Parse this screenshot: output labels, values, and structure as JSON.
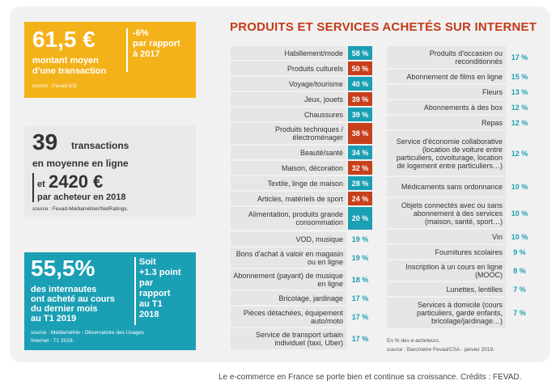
{
  "panel1": {
    "big": "61,5 €",
    "line1": "montant moyen",
    "line2": "d'une transaction",
    "side1": "-6%",
    "side2": "par rapport",
    "side3": "à 2017",
    "source": "source : Fevad iCE"
  },
  "panel2": {
    "big": "39",
    "line1": "transactions",
    "line2": "en moyenne en ligne",
    "et": "et",
    "big2": "2420 €",
    "line3": "par acheteur en 2018",
    "source": "source : Fevad-Médiamétrie//NetRatings."
  },
  "panel3": {
    "big": "55,5%",
    "line1": "des internautes",
    "line2": "ont acheté au cours",
    "line3": "du dernier mois",
    "line4": "au T1 2019",
    "side1": "Soit",
    "side2": "+1.3 point",
    "side3": "par",
    "side4": "rapport",
    "side5": "au T1",
    "side6": "2018",
    "source1": "source : Médiamétrie - Observatoire des Usages",
    "source2": "Internet - T1 2019."
  },
  "chart_data": {
    "type": "bar",
    "title": "PRODUITS ET SERVICES ACHETÉS SUR INTERNET",
    "unit": "%",
    "categories": [
      "Habillement/mode",
      "Produits culturels",
      "Voyage/tourisme",
      "Jeux, jouets",
      "Chaussures",
      "Produits techniques / électroménager",
      "Beauté/santé",
      "Maison, décoration",
      "Textile, linge de maison",
      "Articles, matériels de sport",
      "Alimentation, produits grande consommation",
      "VOD, musique",
      "Bons d'achat à valoir en magasin ou en ligne",
      "Abonnement (payant) de musique en ligne",
      "Bricolage, jardinage",
      "Pièces détachées, équipement auto/moto",
      "Service de transport urbain individuel (taxi, Uber)",
      "Produits d'occasion ou reconditionnés",
      "Abonnement de films en ligne",
      "Fleurs",
      "Abonnements à des box",
      "Repas",
      "Service d'économie collaborative (location de voiture entre particuliers, covoiturage, location de logement entre particuliers…)",
      "Médicaments sans ordonnance",
      "Objets connectés avec ou sans abonnement à des services (maison, santé, sport…)",
      "Vin",
      "Fournitures scolaires",
      "Inscription à un cours en ligne (MOOC)",
      "Lunettes, lentilles",
      "Services à domicile (cours particuliers, garde enfants, bricolage/jardinage…)"
    ],
    "values": [
      58,
      50,
      40,
      39,
      39,
      38,
      34,
      32,
      28,
      24,
      20,
      19,
      19,
      18,
      17,
      17,
      17,
      17,
      15,
      13,
      12,
      12,
      12,
      10,
      10,
      10,
      9,
      8,
      7,
      7
    ],
    "value_labels": [
      "58 %",
      "50 %",
      "40 %",
      "39 %",
      "39 %",
      "38 %",
      "34 %",
      "32 %",
      "28 %",
      "24 %",
      "20 %",
      "19 %",
      "19 %",
      "18 %",
      "17 %",
      "17 %",
      "17 %",
      "17 %",
      "15 %",
      "13 %",
      "12 %",
      "12 %",
      "12 %",
      "10 %",
      "10 %",
      "10 %",
      "9 %",
      "8 %",
      "7 %",
      "7 %"
    ],
    "color_scheme": {
      "red": "#c7401c",
      "blue": "#1b9fb4",
      "text": "#1b9fb4"
    },
    "highlight_colors": [
      "#1b9fb4",
      "#c7401c",
      "#1b9fb4",
      "#c7401c",
      "#1b9fb4",
      "#c7401c",
      "#1b9fb4",
      "#c7401c",
      "#1b9fb4",
      "#c7401c",
      "#1b9fb4"
    ],
    "note": "En % des e-acheteurs.",
    "source": "source : Baromètre Fevad/CSA - janvier 2019."
  },
  "caption": "Le e-commerce en France se porte bien et continue sa croissance. Crédits : FEVAD."
}
